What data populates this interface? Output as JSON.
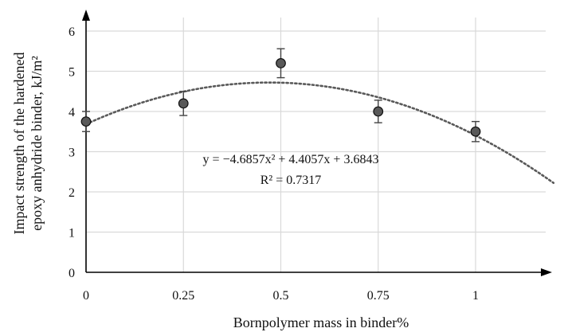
{
  "chart_data": {
    "type": "scatter",
    "title": "",
    "xlabel": "Bornpolymer mass in binder%",
    "ylabel_lines": [
      "Impact strength of the hardened",
      "epoxy anhydride binder, kJ/m²"
    ],
    "x_ticks": [
      "0",
      "0.25",
      "0.5",
      "0.75",
      "1"
    ],
    "y_ticks": [
      "0",
      "1",
      "2",
      "3",
      "4",
      "5",
      "6"
    ],
    "xlim": [
      0,
      1.2
    ],
    "ylim": [
      0,
      6.5
    ],
    "grid": true,
    "points": [
      {
        "x": 0,
        "y": 3.75,
        "err": 0.25
      },
      {
        "x": 0.25,
        "y": 4.2,
        "err": 0.3
      },
      {
        "x": 0.5,
        "y": 5.2,
        "err": 0.36
      },
      {
        "x": 0.75,
        "y": 4.0,
        "err": 0.28
      },
      {
        "x": 1,
        "y": 3.5,
        "err": 0.25
      }
    ],
    "trendline": {
      "type": "polynomial",
      "a": -4.6857,
      "b": 4.4057,
      "c": 3.6843
    },
    "equation": "y = −4.6857x² + 4.4057x + 3.6843",
    "r_squared": "R² = 0.7317",
    "colors": {
      "marker_fill": "#595959",
      "marker_stroke": "#111111",
      "trend": "#595959",
      "grid": "#d9d9d9",
      "axis": "#000000"
    }
  }
}
